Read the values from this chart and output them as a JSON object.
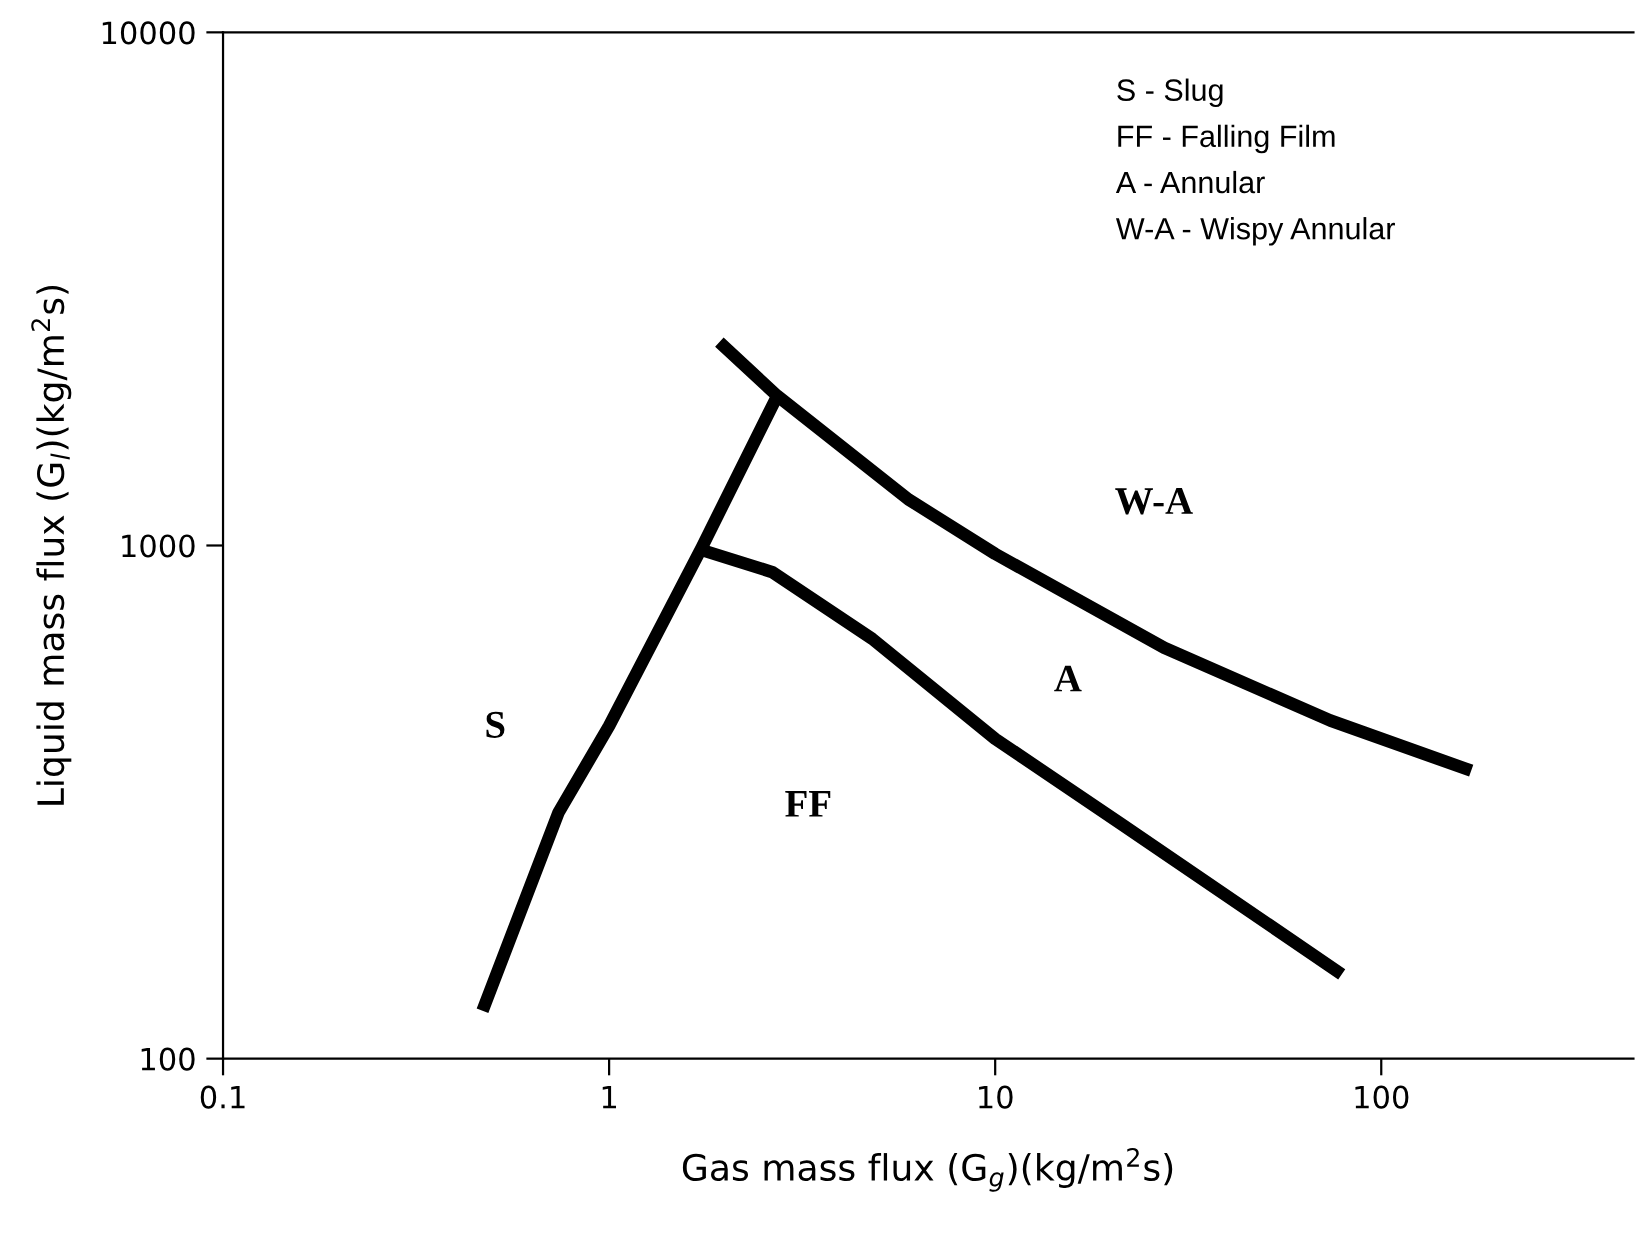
{
  "chart_data": {
    "type": "line",
    "xlabel": "Gas mass flux (G$_{g}$)(kg/m$^{2}$s)",
    "ylabel": "Liquid mass flux (G$_{l}$)(kg/m$^{2}$s)",
    "log": "xy",
    "line_style": "solid",
    "xlim": [
      0.1,
      450
    ],
    "ylim": [
      100,
      10000
    ],
    "xticks": [
      0.1,
      1,
      10,
      100
    ],
    "yticks": [
      100,
      1000,
      10000
    ],
    "series": [
      {
        "color": "#000000",
        "x": [
          0.47,
          0.74,
          1.0,
          1.74,
          2.72
        ],
        "values": [
          124,
          302,
          445,
          993,
          1950
        ]
      },
      {
        "color": "#000000",
        "x": [
          1.93,
          2.72,
          5.96,
          10,
          27.4,
          73.8,
          171
        ],
        "values": [
          2490,
          1960,
          1230,
          963,
          632,
          456,
          364
        ]
      },
      {
        "color": "#000000",
        "x": [
          1.7,
          2.65,
          4.8,
          10,
          21.3,
          79
        ],
        "values": [
          985,
          887,
          658,
          420,
          286,
          146
        ]
      }
    ],
    "annotations": [
      "S",
      "FF",
      "A",
      "W-A",
      "S - Slug",
      "FF - Falling Film",
      "A - Annular",
      "W-A - Wispy Annular"
    ]
  }
}
